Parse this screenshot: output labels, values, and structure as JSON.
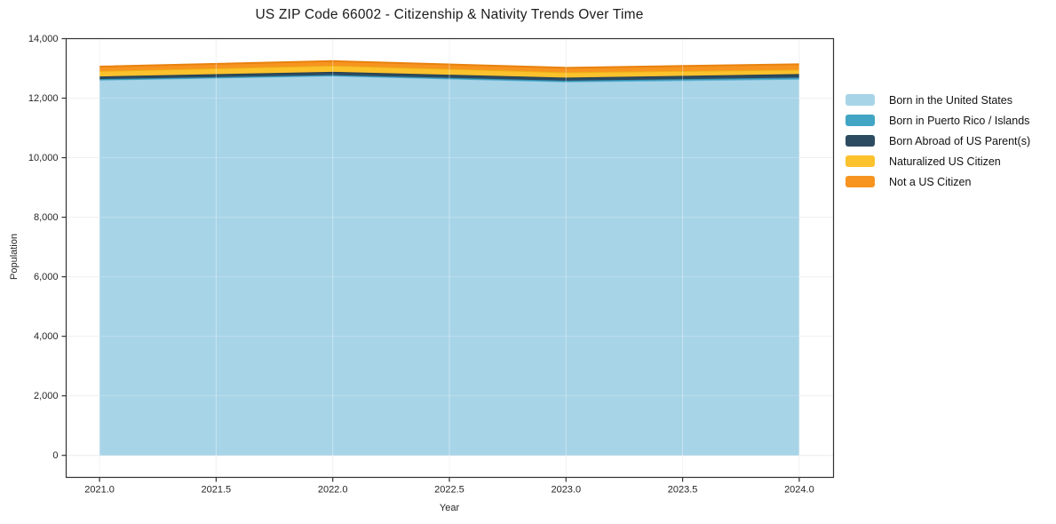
{
  "title": "US ZIP Code 66002 - Citizenship & Nativity Trends Over Time",
  "chart_data": {
    "type": "area",
    "stacked": true,
    "title": "US ZIP Code 66002 - Citizenship & Nativity Trends Over Time",
    "xlabel": "Year",
    "ylabel": "Population",
    "x": [
      2021,
      2022,
      2023,
      2024
    ],
    "series": [
      {
        "name": "Born in the United States",
        "fill": "#a8d4e8",
        "line": "#62b1d3",
        "values": [
          12620,
          12760,
          12560,
          12650
        ]
      },
      {
        "name": "Born in Puerto Rico / Islands",
        "fill": "#42a5c4",
        "line": "#3498b8",
        "values": [
          20,
          15,
          25,
          40
        ]
      },
      {
        "name": "Born Abroad of US Parent(s)",
        "fill": "#2c4b61",
        "line": "#233f53",
        "values": [
          90,
          110,
          105,
          120
        ]
      },
      {
        "name": "Naturalized US Citizen",
        "fill": "#fcc22d",
        "line": "#edb016",
        "values": [
          180,
          210,
          180,
          150
        ]
      },
      {
        "name": "Not a US Citizen",
        "fill": "#f79420",
        "line": "#e8820e",
        "values": [
          150,
          150,
          150,
          180
        ]
      }
    ],
    "totals": [
      13060,
      13245,
      13020,
      13140
    ],
    "xticks": {
      "values": [
        2021.0,
        2021.5,
        2022.0,
        2022.5,
        2023.0,
        2023.5,
        2024.0
      ],
      "labels": [
        "2021.0",
        "2021.5",
        "2022.0",
        "2022.5",
        "2023.0",
        "2023.5",
        "2024.0"
      ]
    },
    "yticks": {
      "values": [
        0,
        2000,
        4000,
        6000,
        8000,
        10000,
        12000,
        14000
      ],
      "labels": [
        "0",
        "2,000",
        "4,000",
        "6,000",
        "8,000",
        "10,000",
        "12,000",
        "14,000"
      ]
    },
    "xlim": [
      2020.857,
      2024.147
    ],
    "ylim": [
      -740,
      14000
    ],
    "grid": true,
    "grid_color": "#ececec",
    "frame_color": "#333333",
    "tick_label_color": "#262626",
    "background_color": "#ffffff",
    "legend_position": "right"
  }
}
